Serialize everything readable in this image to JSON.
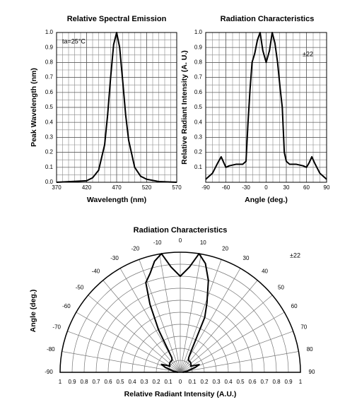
{
  "chart_data": [
    {
      "type": "line",
      "title": "Relative Spectral Emission",
      "x_label": "Wavelength (nm)",
      "y_label": "Peak Wavelength (nm)",
      "annotation": "ta=25°C",
      "x": [
        370,
        420,
        430,
        440,
        450,
        455,
        460,
        465,
        470,
        475,
        480,
        485,
        490,
        500,
        510,
        520,
        540,
        570
      ],
      "values": [
        0,
        0.01,
        0.03,
        0.08,
        0.25,
        0.45,
        0.7,
        0.92,
        1.0,
        0.9,
        0.68,
        0.45,
        0.28,
        0.1,
        0.04,
        0.02,
        0.005,
        0
      ],
      "color": "#000000",
      "grid": true,
      "xlim": [
        370,
        570
      ],
      "xticks": [
        370,
        420,
        470,
        520,
        570
      ],
      "ylim": [
        0,
        1
      ],
      "yticks": [
        {
          "value": 0,
          "label": "0.0"
        },
        0.1,
        0.2,
        0.3,
        0.4,
        0.5,
        0.6,
        0.7,
        0.8,
        0.9,
        {
          "value": 1,
          "label": "1.0"
        }
      ]
    },
    {
      "type": "line",
      "title": "Radiation Characteristics",
      "x_label": "Angle (deg.)",
      "y_label": "Relative Radiant Intensity (A. U.)",
      "annotation": "±22",
      "x": [
        -90,
        -80,
        -72,
        -67,
        -63,
        -60,
        -55,
        -45,
        -35,
        -30,
        -27,
        -24,
        -21,
        -17,
        -13,
        -9,
        -5,
        0,
        5,
        9,
        13,
        17,
        21,
        24,
        27,
        30,
        35,
        45,
        55,
        60,
        64,
        68,
        72,
        80,
        90
      ],
      "values": [
        0.02,
        0.06,
        0.13,
        0.17,
        0.13,
        0.1,
        0.11,
        0.12,
        0.12,
        0.14,
        0.4,
        0.62,
        0.8,
        0.86,
        0.95,
        1.0,
        0.88,
        0.8,
        0.88,
        1.0,
        0.93,
        0.8,
        0.62,
        0.5,
        0.2,
        0.14,
        0.12,
        0.12,
        0.11,
        0.1,
        0.13,
        0.17,
        0.13,
        0.06,
        0.02
      ],
      "color": "#000000",
      "grid": true,
      "xlim": [
        -90,
        90
      ],
      "xticks": [
        -90,
        -60,
        -30,
        0,
        30,
        60,
        90
      ],
      "ylim": [
        0,
        1
      ],
      "yticks": [
        0.1,
        0.2,
        0.3,
        0.4,
        0.5,
        0.6,
        0.7,
        0.8,
        0.9,
        {
          "value": 1,
          "label": "1.0"
        }
      ]
    },
    {
      "type": "polar",
      "title": "Radiation Characteristics",
      "x_label": "Relative Radiant Intensity (A.U.)",
      "y_label": "Angle (deg.)",
      "annotation": "±22",
      "angles": [
        -90,
        -80,
        -72,
        -67,
        -63,
        -60,
        -55,
        -45,
        -35,
        -30,
        -27,
        -24,
        -21,
        -17,
        -13,
        -9,
        -5,
        0,
        5,
        9,
        13,
        17,
        21,
        24,
        27,
        30,
        35,
        45,
        55,
        60,
        64,
        68,
        72,
        80,
        90
      ],
      "values": [
        0.02,
        0.06,
        0.13,
        0.17,
        0.13,
        0.1,
        0.11,
        0.12,
        0.12,
        0.14,
        0.4,
        0.62,
        0.8,
        0.86,
        0.95,
        1.0,
        0.88,
        0.8,
        0.88,
        1.0,
        0.93,
        0.8,
        0.62,
        0.5,
        0.2,
        0.14,
        0.12,
        0.12,
        0.11,
        0.1,
        0.13,
        0.17,
        0.13,
        0.06,
        0.02
      ],
      "color": "#000000",
      "grid": true,
      "rlim": [
        0,
        1
      ],
      "rticks": [
        0,
        0.1,
        0.2,
        0.3,
        0.4,
        0.5,
        0.6,
        0.7,
        0.8,
        0.9,
        1
      ],
      "angle_ticks": [
        -90,
        -80,
        -70,
        -60,
        -50,
        -40,
        -30,
        -20,
        -10,
        0,
        10,
        20,
        30,
        40,
        50,
        60,
        70,
        80,
        90
      ]
    }
  ]
}
